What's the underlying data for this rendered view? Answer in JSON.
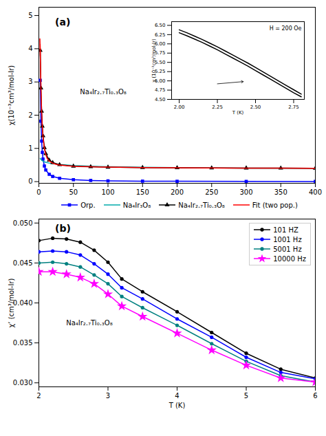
{
  "chart_data": [
    {
      "type": "line",
      "title": "(a)",
      "annotations": [
        "Na₄Ir₂.₇Ti₀.₃O₈"
      ],
      "ylabel": "χ(10⁻³cm³/mol-Ir)",
      "xlim": [
        0,
        400
      ],
      "ylim": [
        -0.05,
        5.25
      ],
      "xticks": [
        0,
        50,
        100,
        150,
        200,
        250,
        300,
        350,
        400
      ],
      "yticks": [
        0,
        1,
        2,
        3,
        4,
        5
      ],
      "grid": false,
      "legend": "bottom",
      "series": [
        {
          "name": "Orp.",
          "color": "#0000FF",
          "marker": "square",
          "x": [
            2,
            3,
            4,
            5,
            6,
            8,
            10,
            15,
            20,
            30,
            50,
            75,
            100,
            150,
            200,
            300,
            400
          ],
          "values": [
            3.05,
            1.82,
            1.22,
            0.88,
            0.68,
            0.47,
            0.35,
            0.22,
            0.155,
            0.1,
            0.058,
            0.035,
            0.022,
            0.014,
            0.01,
            0.006,
            0.004
          ]
        },
        {
          "name": "Na₄Ir₃O₈",
          "color": "#00AAAA",
          "marker": "none",
          "x": [
            2,
            3,
            4,
            5,
            6,
            8,
            10,
            15,
            20,
            30,
            50,
            75,
            100,
            150,
            200,
            300,
            400
          ],
          "values": [
            0.7,
            0.67,
            0.648,
            0.632,
            0.618,
            0.598,
            0.582,
            0.558,
            0.54,
            0.514,
            0.484,
            0.462,
            0.448,
            0.432,
            0.422,
            0.408,
            0.4
          ]
        },
        {
          "name": "Na₄Ir₂.₇Ti₀.₃O₈",
          "color": "#000000",
          "marker": "triangle",
          "x": [
            2,
            3,
            4,
            5,
            6,
            8,
            10,
            15,
            20,
            30,
            50,
            75,
            100,
            150,
            200,
            250,
            300,
            350,
            400
          ],
          "values": [
            3.95,
            2.82,
            2.12,
            1.67,
            1.38,
            1.02,
            0.84,
            0.645,
            0.572,
            0.508,
            0.465,
            0.445,
            0.434,
            0.423,
            0.416,
            0.412,
            0.408,
            0.404,
            0.4
          ],
          "error_bars": [
            {
              "x": 2,
              "y": 3.95,
              "minus": 0.18,
              "plus": 0.18,
              "color": "#FF0000"
            }
          ]
        },
        {
          "name": "Fit (two pop.)",
          "color": "#FF0000",
          "marker": "none",
          "x": [
            1.5,
            2,
            3,
            4,
            5,
            6,
            7,
            8,
            9,
            10,
            12,
            15,
            20,
            25,
            30,
            40,
            50,
            60,
            75,
            100,
            150,
            200,
            250,
            300,
            350,
            400
          ],
          "values": [
            4.3,
            3.93,
            2.8,
            2.1,
            1.65,
            1.36,
            1.16,
            1.01,
            0.9,
            0.82,
            0.7,
            0.62,
            0.555,
            0.52,
            0.5,
            0.476,
            0.462,
            0.453,
            0.445,
            0.434,
            0.423,
            0.416,
            0.412,
            0.408,
            0.404,
            0.4
          ]
        }
      ]
    },
    {
      "type": "line",
      "xlabel": "T (K)",
      "ylabel": "χ (10⁻³cm³/mol-Ir)",
      "annotations": [
        "H = 200 Oe"
      ],
      "arrows": [
        {
          "from": [
            2.25,
            4.92
          ],
          "to": [
            2.42,
            4.98
          ]
        }
      ],
      "xlim": [
        1.95,
        2.82
      ],
      "ylim": [
        4.5,
        6.6
      ],
      "xticks": [
        {
          "value": 2.0,
          "label": "2.00"
        },
        {
          "value": 2.25,
          "label": "2.25"
        },
        {
          "value": 2.5,
          "label": "2.50"
        },
        {
          "value": 2.75,
          "label": "2.75"
        }
      ],
      "yticks": [
        {
          "value": 4.5,
          "label": "4.50"
        },
        {
          "value": 4.75,
          "label": "4.75"
        },
        {
          "value": 5.0,
          "label": "5.00"
        },
        {
          "value": 5.25,
          "label": "5.25"
        },
        {
          "value": 5.5,
          "label": "5.50"
        },
        {
          "value": 5.75,
          "label": "5.75"
        },
        {
          "value": 6.0,
          "label": "6.00"
        },
        {
          "value": 6.25,
          "label": "6.25"
        },
        {
          "value": 6.5,
          "label": "6.50"
        }
      ],
      "grid": false,
      "x": [
        2.0,
        2.05,
        2.1,
        2.15,
        2.2,
        2.25,
        2.3,
        2.35,
        2.4,
        2.45,
        2.5,
        2.55,
        2.6,
        2.65,
        2.7,
        2.75,
        2.8
      ],
      "series": [
        {
          "color": "#000000",
          "marker": "none",
          "values": [
            6.38,
            6.3,
            6.21,
            6.12,
            6.02,
            5.92,
            5.81,
            5.7,
            5.59,
            5.48,
            5.36,
            5.24,
            5.12,
            5.0,
            4.88,
            4.76,
            4.64
          ]
        },
        {
          "color": "#000000",
          "marker": "none",
          "values": [
            6.3,
            6.22,
            6.13,
            6.04,
            5.94,
            5.84,
            5.73,
            5.62,
            5.51,
            5.4,
            5.28,
            5.16,
            5.04,
            4.92,
            4.8,
            4.68,
            4.57
          ]
        }
      ]
    },
    {
      "type": "line",
      "title": "(b)",
      "annotations": [
        "Na₄Ir₂.₇Ti₀.₃O₈"
      ],
      "xlabel": "T (K)",
      "ylabel": "χ’ (cm³/mol-Ir)",
      "xlim": [
        2,
        6
      ],
      "ylim": [
        0.0295,
        0.0505
      ],
      "xticks": [
        2,
        3,
        4,
        5,
        6
      ],
      "yticks": [
        {
          "value": 0.03,
          "label": "0.030"
        },
        {
          "value": 0.035,
          "label": "0.035"
        },
        {
          "value": 0.04,
          "label": "0.040"
        },
        {
          "value": 0.045,
          "label": "0.045"
        },
        {
          "value": 0.05,
          "label": "0.050"
        }
      ],
      "grid": false,
      "legend": "upper right",
      "x": [
        2.0,
        2.2,
        2.4,
        2.6,
        2.8,
        3.0,
        3.2,
        3.5,
        4.0,
        4.5,
        5.0,
        5.5,
        6.0
      ],
      "series": [
        {
          "name": "101 HZ",
          "color": "#000000",
          "marker": "circle",
          "values": [
            0.0478,
            0.0481,
            0.048,
            0.0476,
            0.0466,
            0.0451,
            0.043,
            0.0414,
            0.0389,
            0.0363,
            0.0337,
            0.0317,
            0.0306
          ]
        },
        {
          "name": "1001 Hz",
          "color": "#0000FF",
          "marker": "circle",
          "values": [
            0.0464,
            0.0465,
            0.0464,
            0.046,
            0.0449,
            0.0436,
            0.0419,
            0.0405,
            0.038,
            0.0357,
            0.0332,
            0.0313,
            0.0305
          ]
        },
        {
          "name": "5001 Hz",
          "color": "#008080",
          "marker": "circle",
          "values": [
            0.045,
            0.0451,
            0.0449,
            0.0445,
            0.0435,
            0.0424,
            0.0408,
            0.0394,
            0.0372,
            0.0349,
            0.0327,
            0.0309,
            0.0301
          ]
        },
        {
          "name": "10000 Hz",
          "color": "#FF00FF",
          "marker": "star",
          "values": [
            0.0439,
            0.0439,
            0.0436,
            0.0432,
            0.0424,
            0.0411,
            0.0396,
            0.0383,
            0.0362,
            0.0341,
            0.0322,
            0.0306,
            0.0301
          ]
        }
      ]
    }
  ]
}
